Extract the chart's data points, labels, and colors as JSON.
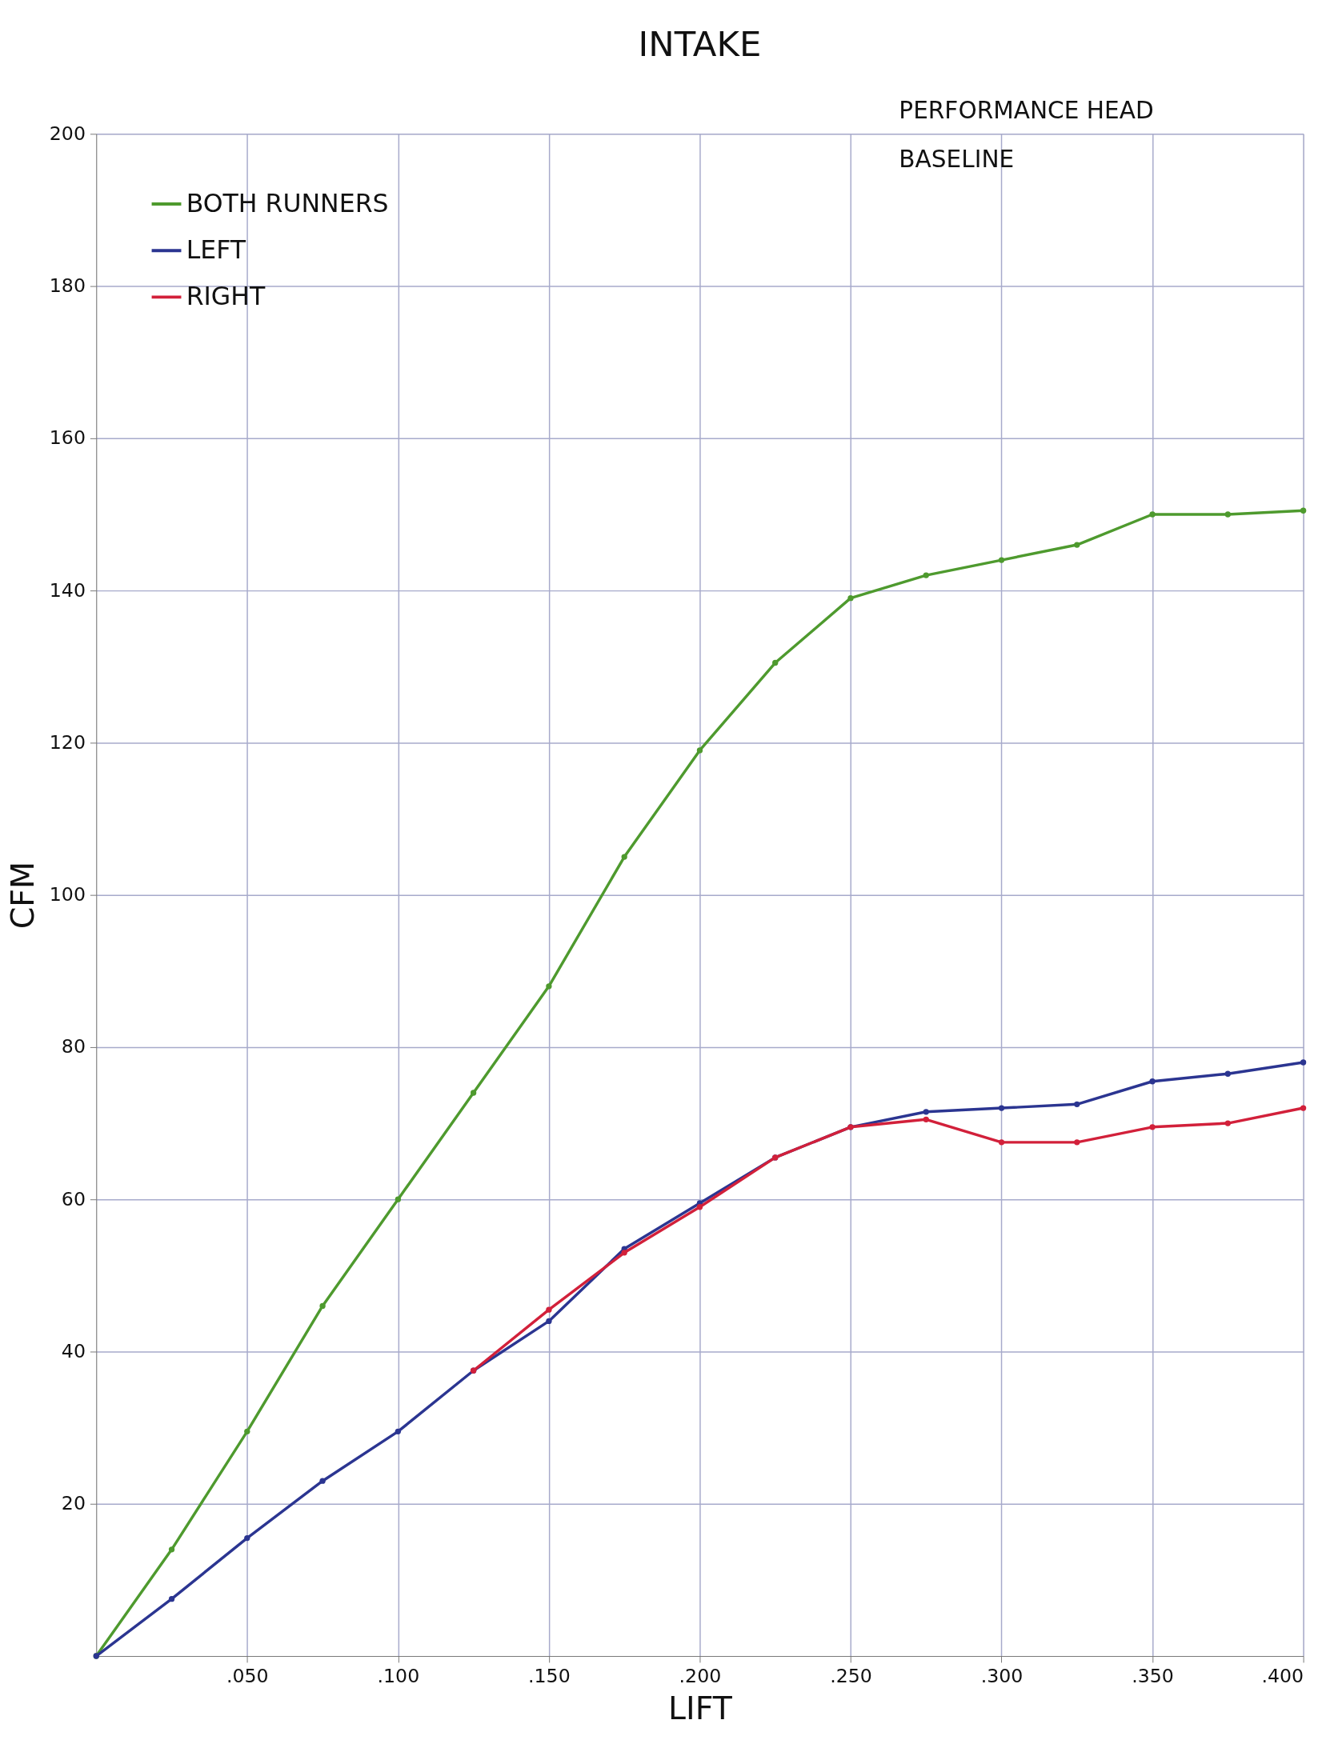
{
  "chart_data": {
    "type": "line",
    "title": "INTAKE",
    "subtitle": "PERFORMANCE HEAD",
    "annotations": [
      "BASELINE"
    ],
    "xlabel": "LIFT",
    "ylabel": "CFM",
    "x": [
      0,
      0.025,
      0.05,
      0.075,
      0.1,
      0.125,
      0.15,
      0.175,
      0.2,
      0.225,
      0.25,
      0.275,
      0.3,
      0.325,
      0.35,
      0.375,
      0.4
    ],
    "series": [
      {
        "name": "BOTH RUNNERS",
        "color": "#4e9a2e",
        "values": [
          0,
          14,
          29.5,
          46,
          60,
          74,
          88,
          105,
          119,
          130.5,
          139,
          142,
          144,
          146,
          150,
          150,
          150.5
        ]
      },
      {
        "name": "LEFT",
        "color": "#2b3591",
        "values": [
          0,
          7.5,
          15.5,
          23,
          29.5,
          37.5,
          44,
          53.5,
          59.5,
          65.5,
          69.5,
          71.5,
          72,
          72.5,
          75.5,
          76.5,
          78
        ]
      },
      {
        "name": "RIGHT",
        "color": "#d2203a",
        "x": [
          0.125,
          0.15,
          0.175,
          0.2,
          0.225,
          0.25,
          0.275,
          0.3,
          0.325,
          0.35,
          0.375,
          0.4
        ],
        "values": [
          37.5,
          45.5,
          53,
          59,
          65.5,
          69.5,
          70.5,
          67.5,
          67.5,
          69.5,
          70,
          72
        ]
      }
    ],
    "xlim": [
      0,
      0.4
    ],
    "ylim": [
      0,
      200
    ],
    "xticks": [
      {
        "value": 0.05,
        "label": ".050"
      },
      {
        "value": 0.1,
        "label": ".100"
      },
      {
        "value": 0.15,
        "label": ".150"
      },
      {
        "value": 0.2,
        "label": ".200"
      },
      {
        "value": 0.25,
        "label": ".250"
      },
      {
        "value": 0.3,
        "label": ".300"
      },
      {
        "value": 0.35,
        "label": ".350"
      },
      {
        "value": 0.4,
        "label": ".400"
      }
    ],
    "yticks": [
      20,
      40,
      60,
      80,
      100,
      120,
      140,
      160,
      180,
      200
    ],
    "grid": true,
    "legend": "top left",
    "marker": "circle"
  }
}
